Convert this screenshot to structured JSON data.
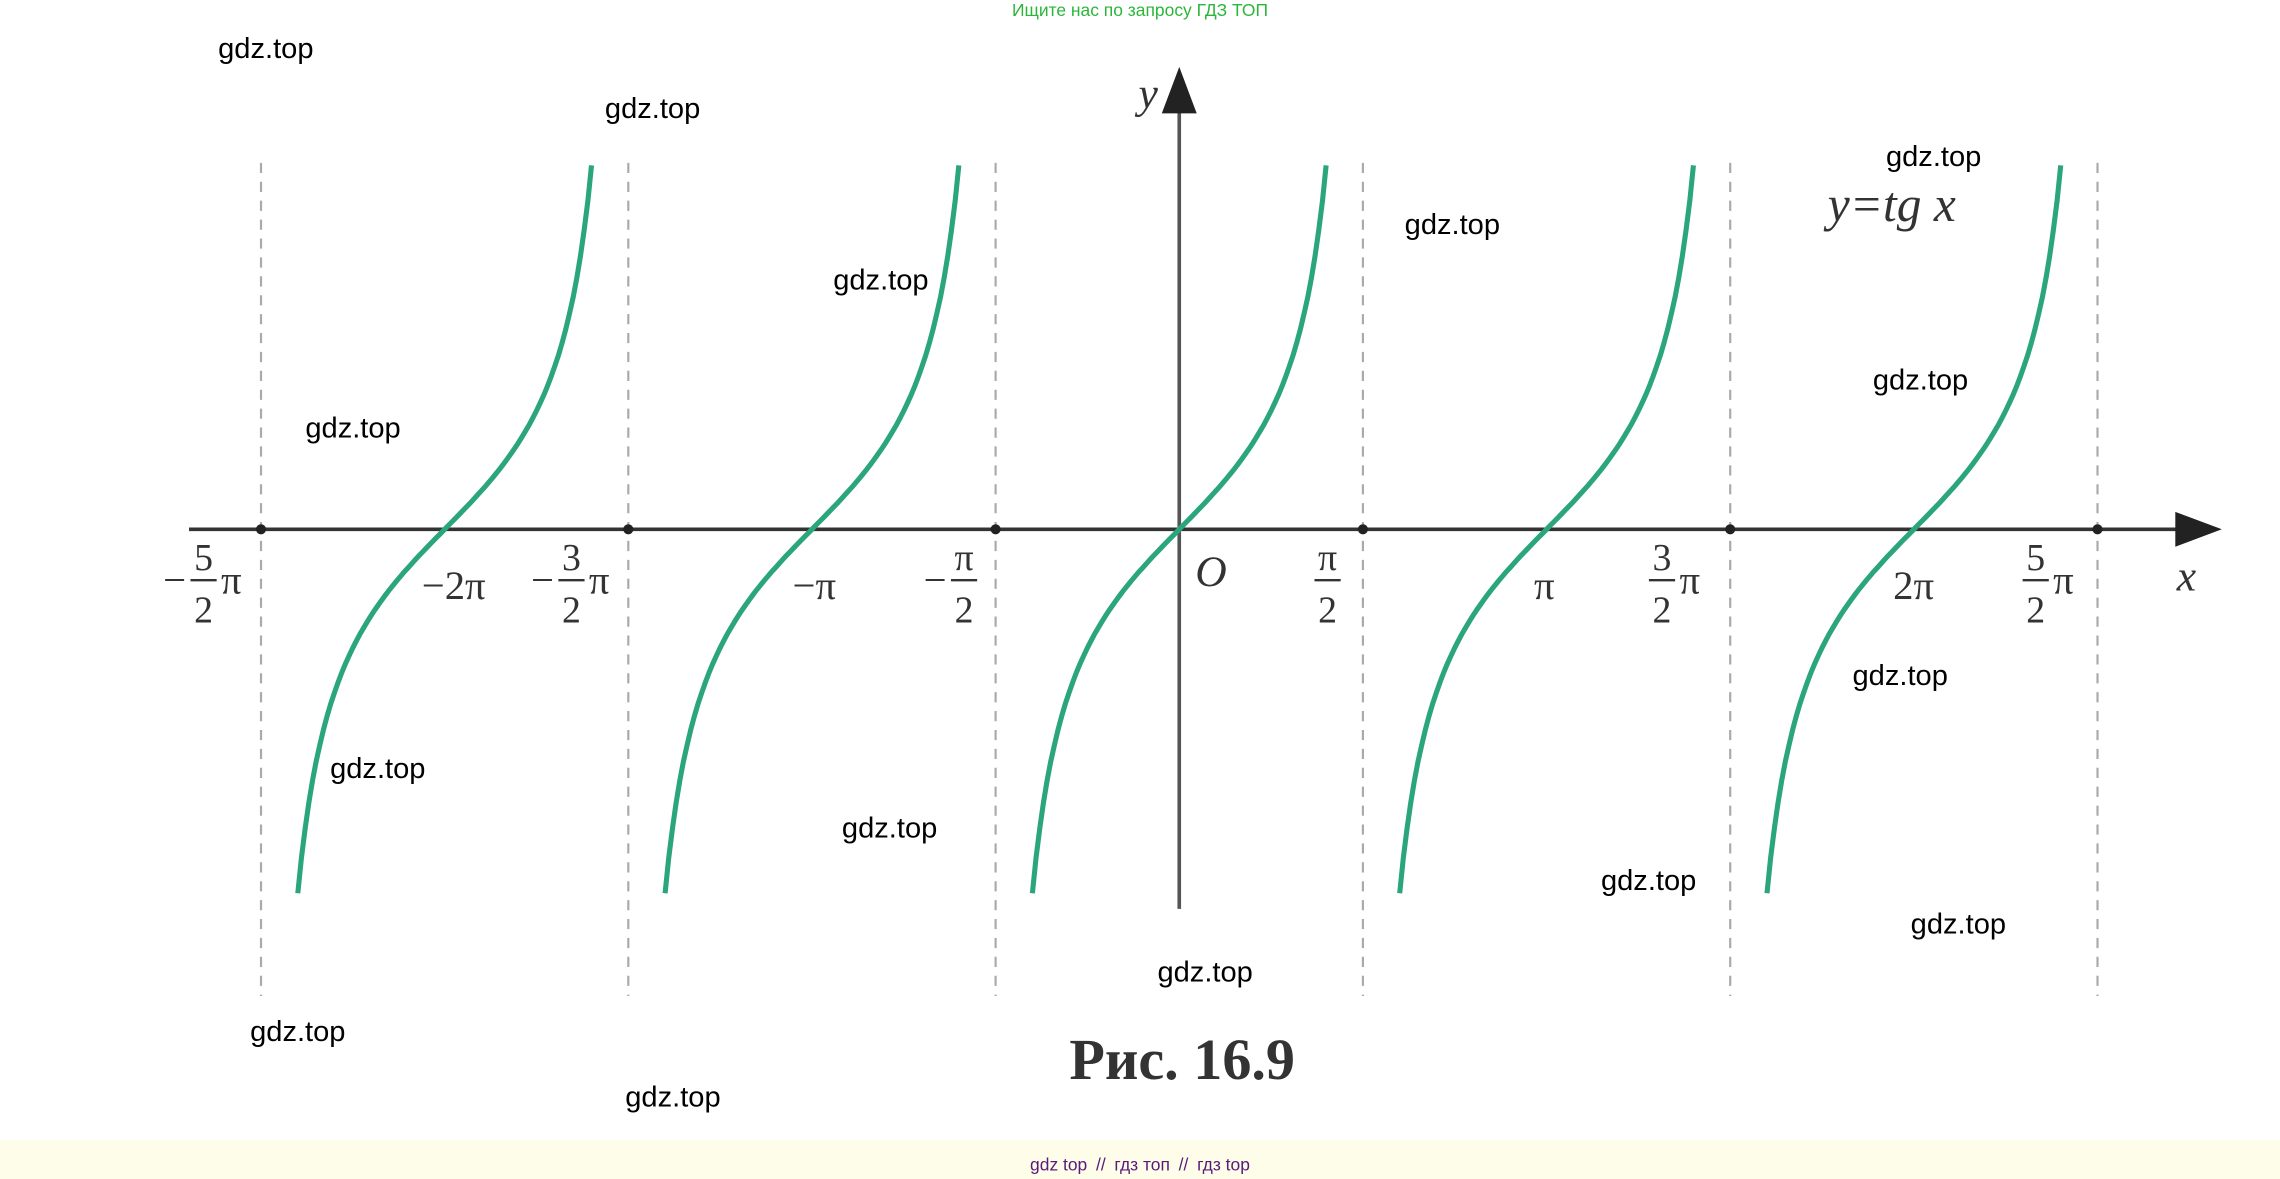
{
  "header": {
    "text": "Ищите нас по запросу ГДЗ ТОП"
  },
  "figure": {
    "y_label": "y",
    "x_label": "x",
    "origin": "O",
    "formula": "y=tg x",
    "caption": "Рис. 16.9",
    "tick_labels": [
      {
        "sign": "−",
        "numerator": "5",
        "denominator": "2",
        "symbol": "π"
      },
      {
        "text": "−2π"
      },
      {
        "sign": "−",
        "numerator": "3",
        "denominator": "2",
        "symbol": "π"
      },
      {
        "text": "−π"
      },
      {
        "sign": "−",
        "numerator": "π",
        "denominator": "2"
      },
      {
        "numerator": "π",
        "denominator": "2"
      },
      {
        "text": "π"
      },
      {
        "numerator": "3",
        "denominator": "2",
        "symbol": "π"
      },
      {
        "text": "2π"
      },
      {
        "numerator": "5",
        "denominator": "2",
        "symbol": "π"
      }
    ]
  },
  "watermarks": [
    "gdz.top",
    "gdz.top",
    "gdz.top",
    "gdz.top",
    "gdz.top",
    "gdz.top",
    "gdz.top",
    "gdz.top",
    "gdz.top",
    "gdz.top",
    "gdz.top",
    "gdz.top",
    "gdz.top",
    "gdz.top",
    "gdz.top"
  ],
  "footer": {
    "links": [
      "gdz top",
      "гдз топ",
      "гдз top"
    ],
    "separator": "//"
  }
}
